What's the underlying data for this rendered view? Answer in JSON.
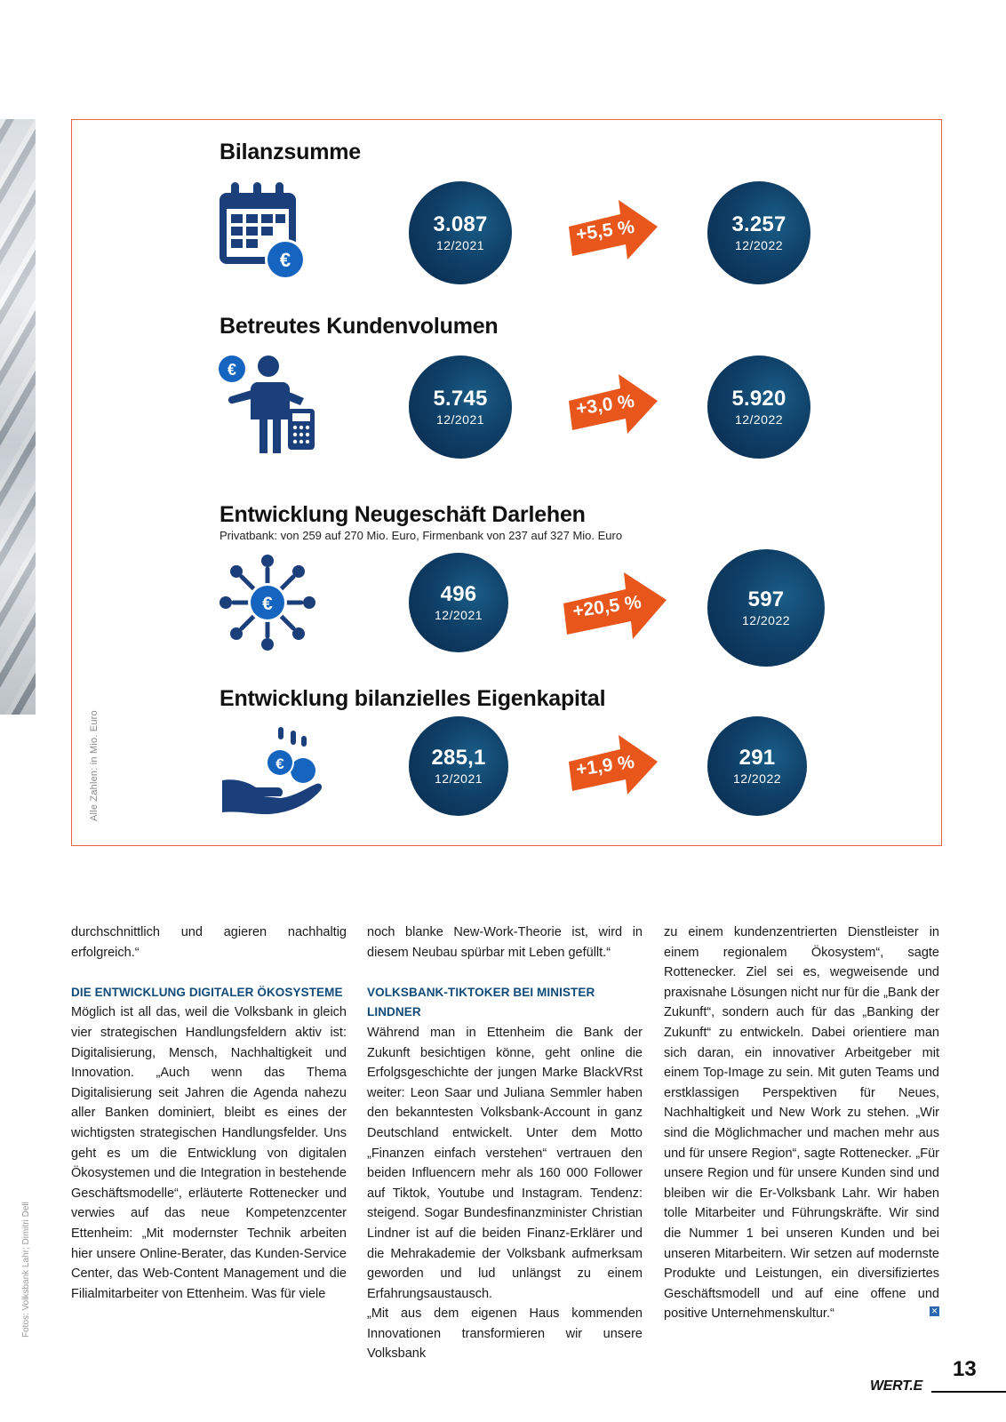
{
  "side_note": "Alle Zahlen: in Mio. Euro",
  "photo_credit": "Fotos: Volksbank Lahr; Dimitri Dell",
  "kpis": [
    {
      "title": "Bilanzsumme",
      "subtitle": "",
      "icon": "calendar-euro-icon",
      "before": {
        "value": "3.087",
        "date": "12/2021"
      },
      "change": "+5,5 %",
      "after": {
        "value": "3.257",
        "date": "12/2022"
      }
    },
    {
      "title": "Betreutes Kundenvolumen",
      "subtitle": "",
      "icon": "person-calculator-icon",
      "before": {
        "value": "5.745",
        "date": "12/2021"
      },
      "change": "+3,0 %",
      "after": {
        "value": "5.920",
        "date": "12/2022"
      }
    },
    {
      "title": "Entwicklung Neugeschäft Darlehen",
      "subtitle": "Privatbank: von 259 auf 270 Mio. Euro, Firmenbank von 237 auf 327 Mio. Euro",
      "icon": "euro-network-icon",
      "before": {
        "value": "496",
        "date": "12/2021"
      },
      "change": "+20,5 %",
      "after": {
        "value": "597",
        "date": "12/2022"
      }
    },
    {
      "title": "Entwicklung bilanzielles Eigenkapital",
      "subtitle": "",
      "icon": "hand-coins-icon",
      "before": {
        "value": "285,1",
        "date": "12/2021"
      },
      "change": "+1,9 %",
      "after": {
        "value": "291",
        "date": "12/2022"
      }
    }
  ],
  "columns": {
    "col1": {
      "p1": "durchschnittlich und agieren nachhaltig erfolgreich.“",
      "h1": "DIE ENTWICKLUNG DIGITALER ÖKOSYSTEME",
      "p2": "Möglich ist all das, weil die Volksbank in gleich vier strategischen Handlungsfeldern aktiv ist: Digitalisierung, Mensch, Nachhaltigkeit und Innovation. „Auch wenn das Thema Digitalisierung seit Jahren die Agenda nahezu aller Banken dominiert, bleibt es eines der wichtigsten strategischen Handlungsfelder. Uns geht es um die Entwicklung von digitalen Ökosystemen und die Integration in bestehende Geschäftsmodelle“, erläuterte Rottenecker und verwies auf das neue Kompetenzcenter Ettenheim: „Mit modernster Technik arbeiten hier unsere Online-Berater, das Kunden-Service Center, das Web-Content Management und die Filialmitarbeiter von Ettenheim. Was für viele"
    },
    "col2": {
      "p1": "noch blanke New-Work-Theorie ist, wird in diesem Neubau spürbar mit Leben gefüllt.“",
      "h1": "VOLKSBANK-TIKTOKER BEI MINISTER LINDNER",
      "p2": "Während man in Ettenheim die Bank der Zukunft besichtigen könne, geht online die Erfolgsgeschichte der jungen Marke BlackVRst weiter: Leon Saar und Juliana Semmler haben den bekanntesten Volksbank-Account in ganz Deutschland entwickelt. Unter dem Motto „Finanzen einfach verstehen“ vertrauen den beiden Influencern mehr als 160 000 Follower auf Tiktok, Youtube und Instagram. Tendenz: steigend. Sogar Bundesfinanzminister Christian Lindner ist auf die beiden Finanz-Erklärer und die Mehrakademie der Volksbank aufmerksam geworden und lud unlängst zu einem Erfahrungsaustausch.",
      "p3": "„Mit aus dem eigenen Haus kommenden Innovationen transformieren wir unsere Volksbank"
    },
    "col3": {
      "p1": "zu einem kundenzentrierten Dienstleister in einem regionalem Ökosystem“, sagte Rottenecker. Ziel sei es, wegweisende und praxisnahe Lösungen nicht nur für die „Bank der Zukunft“, sondern auch für das „Banking der Zukunft“ zu entwickeln. Dabei orientiere man sich daran, ein innovativer Arbeitgeber mit einem Top-Image zu sein. Mit guten Teams und erstklassigen Perspektiven für Neues, Nachhaltigkeit und New Work zu stehen. „Wir sind die Möglichmacher und machen mehr aus und für unsere Region“, sagte Rottenecker. „Für unsere Region und für unsere Kunden sind und bleiben wir die Er-Volksbank Lahr. Wir haben tolle Mitarbeiter und Führungskräfte. Wir sind die Nummer 1 bei unseren Kunden und bei unseren Mitarbeitern. Wir setzen auf modernste Produkte und Leistungen, ein diversifiziertes Geschäftsmodell und auf eine offene und positive Unternehmenskultur.“"
    }
  },
  "footer": {
    "brand": "WERT.E",
    "page": "13"
  },
  "colors": {
    "navy": "#0f3f67",
    "icon_blue": "#1b3f7a",
    "accent_blue": "#1565c0",
    "orange": "#e8561c",
    "frame": "#e8643c"
  }
}
